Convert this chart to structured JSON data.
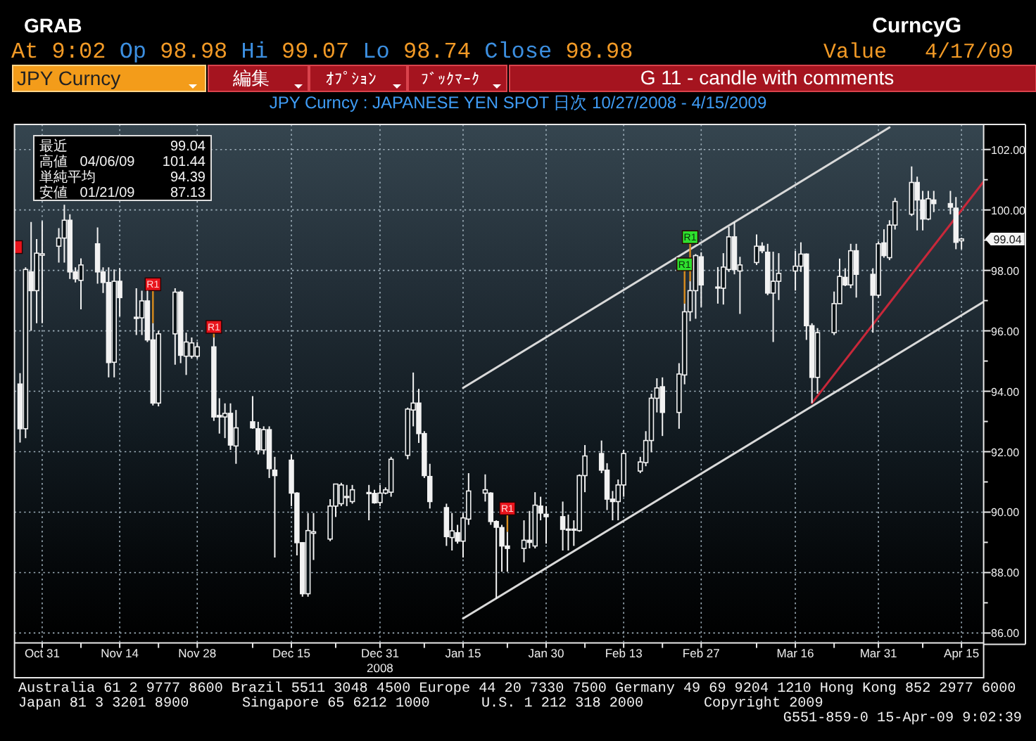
{
  "chart_data": {
    "type": "candlestick",
    "title": "JPY Curncy : JAPANESE YEN SPOT 日次 10/27/2008 - 4/15/2009",
    "annotations": [
      "GRAB",
      "CurncyG",
      "At 9:02 Op 98.98 Hi 99.07 Lo 98.74 Close 98.98",
      "Value 4/17/09",
      "JPY Curncy",
      "編集",
      "ｵﾌﾟｼｮﾝ",
      "ﾌﾞｯｸﾏｰｸ",
      "G 11 - candle with comments",
      "最近 99.04",
      "高値 04/06/09 101.44",
      "単純平均 94.39",
      "安値 01/21/09 87.13",
      "Australia 61 2 9777 8600 Brazil 5511 3048 4500 Europe 44 20 7330 7500 Germany 49 69 9204 1210 Hong Kong 852 2977 6000",
      "Japan 81 3 3201 8900",
      "Singapore 65 6212 1000",
      "U.S. 1 212 318 2000",
      "Copyright 2009",
      "G551-859-0 15-Apr-09 9:02:39",
      "99.04"
    ],
    "x": [
      "2008-10-27",
      "2008-10-28",
      "2008-10-29",
      "2008-10-30",
      "2008-10-31",
      "2008-11-03",
      "2008-11-04",
      "2008-11-05",
      "2008-11-06",
      "2008-11-07",
      "2008-11-10",
      "2008-11-11",
      "2008-11-12",
      "2008-11-13",
      "2008-11-14",
      "2008-11-17",
      "2008-11-18",
      "2008-11-19",
      "2008-11-20",
      "2008-11-21",
      "2008-11-24",
      "2008-11-25",
      "2008-11-26",
      "2008-11-27",
      "2008-11-28",
      "2008-12-01",
      "2008-12-02",
      "2008-12-03",
      "2008-12-04",
      "2008-12-05",
      "2008-12-08",
      "2008-12-09",
      "2008-12-10",
      "2008-12-11",
      "2008-12-12",
      "2008-12-15",
      "2008-12-16",
      "2008-12-17",
      "2008-12-18",
      "2008-12-19",
      "2008-12-22",
      "2008-12-23",
      "2008-12-24",
      "2008-12-25",
      "2008-12-26",
      "2008-12-29",
      "2008-12-30",
      "2008-12-31",
      "2009-01-01",
      "2009-01-02",
      "2009-01-05",
      "2009-01-06",
      "2009-01-07",
      "2009-01-08",
      "2009-01-09",
      "2009-01-12",
      "2009-01-13",
      "2009-01-14",
      "2009-01-15",
      "2009-01-16",
      "2009-01-19",
      "2009-01-20",
      "2009-01-21",
      "2009-01-22",
      "2009-01-23",
      "2009-01-26",
      "2009-01-27",
      "2009-01-28",
      "2009-01-29",
      "2009-01-30",
      "2009-02-02",
      "2009-02-03",
      "2009-02-04",
      "2009-02-05",
      "2009-02-06",
      "2009-02-09",
      "2009-02-10",
      "2009-02-11",
      "2009-02-12",
      "2009-02-13",
      "2009-02-16",
      "2009-02-17",
      "2009-02-18",
      "2009-02-19",
      "2009-02-20",
      "2009-02-23",
      "2009-02-24",
      "2009-02-25",
      "2009-02-26",
      "2009-02-27",
      "2009-03-02",
      "2009-03-03",
      "2009-03-04",
      "2009-03-05",
      "2009-03-06",
      "2009-03-09",
      "2009-03-10",
      "2009-03-11",
      "2009-03-12",
      "2009-03-13",
      "2009-03-16",
      "2009-03-17",
      "2009-03-18",
      "2009-03-19",
      "2009-03-20",
      "2009-03-23",
      "2009-03-24",
      "2009-03-25",
      "2009-03-26",
      "2009-03-27",
      "2009-03-30",
      "2009-03-31",
      "2009-04-01",
      "2009-04-02",
      "2009-04-03",
      "2009-04-06",
      "2009-04-07",
      "2009-04-08",
      "2009-04-09",
      "2009-04-10",
      "2009-04-13",
      "2009-04-14",
      "2009-04-15"
    ],
    "ohlc": [
      [
        94.24,
        94.6,
        92.3,
        92.76
      ],
      [
        92.76,
        98.1,
        92.45,
        98.03
      ],
      [
        97.95,
        99.6,
        96.0,
        97.33
      ],
      [
        97.33,
        99.04,
        96.25,
        98.57
      ],
      [
        98.5,
        99.63,
        96.25,
        98.55
      ],
      [
        98.8,
        99.4,
        98.26,
        99.07
      ],
      [
        99.07,
        100.17,
        98.26,
        99.66
      ],
      [
        99.66,
        99.86,
        97.72,
        97.95
      ],
      [
        97.95,
        98.1,
        97.6,
        97.72
      ],
      [
        97.67,
        98.4,
        96.71,
        98.18
      ],
      [
        98.88,
        99.42,
        97.56,
        97.95
      ],
      [
        97.95,
        98.1,
        97.25,
        97.6
      ],
      [
        97.6,
        98.1,
        94.46,
        94.95
      ],
      [
        94.96,
        98.03,
        94.46,
        97.64
      ],
      [
        97.64,
        98.07,
        96.48,
        97.1
      ],
      [
        96.45,
        97.41,
        95.86,
        96.41
      ],
      [
        96.43,
        97.33,
        95.86,
        96.99
      ],
      [
        96.99,
        97.33,
        95.63,
        95.7
      ],
      [
        95.7,
        96.25,
        93.53,
        93.61
      ],
      [
        93.61,
        96.0,
        93.5,
        95.9
      ],
      [
        95.9,
        97.41,
        94.88,
        97.28
      ],
      [
        97.28,
        97.33,
        94.93,
        95.19
      ],
      [
        95.16,
        95.94,
        94.54,
        95.63
      ],
      [
        95.16,
        95.78,
        95.08,
        95.6
      ],
      [
        95.16,
        95.63,
        95.08,
        95.47
      ],
      [
        95.47,
        95.78,
        93.02,
        93.15
      ],
      [
        93.2,
        93.77,
        92.6,
        93.15
      ],
      [
        93.15,
        93.6,
        92.45,
        93.27
      ],
      [
        93.27,
        93.6,
        92.06,
        92.22
      ],
      [
        92.19,
        93.38,
        91.6,
        92.79
      ],
      [
        92.99,
        93.84,
        92.76,
        92.79
      ],
      [
        92.76,
        92.99,
        91.91,
        92.06
      ],
      [
        92.06,
        92.84,
        91.91,
        92.73
      ],
      [
        92.73,
        92.84,
        91.13,
        91.44
      ],
      [
        91.39,
        91.83,
        88.5,
        91.21
      ],
      [
        91.72,
        91.91,
        90.2,
        90.63
      ],
      [
        90.63,
        90.66,
        88.57,
        88.99
      ],
      [
        88.99,
        89.0,
        87.2,
        87.3
      ],
      [
        87.3,
        89.97,
        87.2,
        89.39
      ],
      [
        89.3,
        89.97,
        88.42,
        89.35
      ],
      [
        89.11,
        90.43,
        89.04,
        90.2
      ],
      [
        90.2,
        90.94,
        89.84,
        90.93
      ],
      [
        90.28,
        90.97,
        90.2,
        90.9
      ],
      [
        90.52,
        90.9,
        90.2,
        90.5
      ],
      [
        90.35,
        90.9,
        90.28,
        90.74
      ],
      [
        90.65,
        90.9,
        89.73,
        90.63
      ],
      [
        90.62,
        90.74,
        90.28,
        90.31
      ],
      [
        90.32,
        90.9,
        90.2,
        90.63
      ],
      [
        90.63,
        90.82,
        90.59,
        90.74
      ],
      [
        90.66,
        91.83,
        90.51,
        91.75
      ],
      [
        91.88,
        93.46,
        91.75,
        93.41
      ],
      [
        93.38,
        94.62,
        92.84,
        93.61
      ],
      [
        93.61,
        94.08,
        92.29,
        92.6
      ],
      [
        92.6,
        92.68,
        91.13,
        91.21
      ],
      [
        91.18,
        91.6,
        90.12,
        90.35
      ],
      [
        90.15,
        90.28,
        88.88,
        89.19
      ],
      [
        89.16,
        89.97,
        88.73,
        89.38
      ],
      [
        89.32,
        89.58,
        88.96,
        89.04
      ],
      [
        89.04,
        89.97,
        88.5,
        89.81
      ],
      [
        89.77,
        91.29,
        89.58,
        90.7
      ],
      [
        90.63,
        91.25,
        90.35,
        90.74
      ],
      [
        90.63,
        90.66,
        89.58,
        89.69
      ],
      [
        89.69,
        89.73,
        87.13,
        89.5
      ],
      [
        89.49,
        89.58,
        88.03,
        88.88
      ],
      [
        88.88,
        89.35,
        88.03,
        88.8
      ],
      [
        88.8,
        89.73,
        88.34,
        89.07
      ],
      [
        89.07,
        90.04,
        88.8,
        89.0
      ],
      [
        88.88,
        90.66,
        88.8,
        90.23
      ],
      [
        90.2,
        90.51,
        89.73,
        89.97
      ],
      [
        89.93,
        90.2,
        88.96,
        89.85
      ],
      [
        89.85,
        90.35,
        88.73,
        89.43
      ],
      [
        89.43,
        89.92,
        88.73,
        89.44
      ],
      [
        89.42,
        89.73,
        88.88,
        89.44
      ],
      [
        89.39,
        91.25,
        89.35,
        91.21
      ],
      [
        91.21,
        92.22,
        90.66,
        91.86
      ],
      [
        91.94,
        92.37,
        91.29,
        91.39
      ],
      [
        91.39,
        91.62,
        90.07,
        90.43
      ],
      [
        90.43,
        90.7,
        89.73,
        90.35
      ],
      [
        90.35,
        91.08,
        89.73,
        90.9
      ],
      [
        90.9,
        92.06,
        90.51,
        91.94
      ],
      [
        91.36,
        91.83,
        91.29,
        91.66
      ],
      [
        91.64,
        92.68,
        91.52,
        92.37
      ],
      [
        92.37,
        93.92,
        91.98,
        93.77
      ],
      [
        93.77,
        94.43,
        93.3,
        94.11
      ],
      [
        94.15,
        94.46,
        92.52,
        93.3
      ],
      [
        93.3,
        94.93,
        92.76,
        94.57
      ],
      [
        94.54,
        96.9,
        94.23,
        96.63
      ],
      [
        96.63,
        97.64,
        96.32,
        97.33
      ],
      [
        97.33,
        98.54,
        96.4,
        98.49
      ],
      [
        98.45,
        98.6,
        96.79,
        97.52
      ],
      [
        97.45,
        98.11,
        96.9,
        97.44
      ],
      [
        97.41,
        98.57,
        96.87,
        98.11
      ],
      [
        98.03,
        99.44,
        97.95,
        99.11
      ],
      [
        99.11,
        99.6,
        97.87,
        98.03
      ],
      [
        97.98,
        98.45,
        96.56,
        98.18
      ],
      [
        98.26,
        99.19,
        98.18,
        98.8
      ],
      [
        98.8,
        98.93,
        98.57,
        98.65
      ],
      [
        98.6,
        98.88,
        97.18,
        97.25
      ],
      [
        97.25,
        98.62,
        95.63,
        97.64
      ],
      [
        97.64,
        98.57,
        97.02,
        97.9
      ],
      [
        97.98,
        98.65,
        97.33,
        98.14
      ],
      [
        98.14,
        98.93,
        97.95,
        98.54
      ],
      [
        98.54,
        98.56,
        95.7,
        96.17
      ],
      [
        96.17,
        96.25,
        93.61,
        94.46
      ],
      [
        94.46,
        96.09,
        93.92,
        95.94
      ],
      [
        95.94,
        97.3,
        95.86,
        96.9
      ],
      [
        96.9,
        98.39,
        96.9,
        97.8
      ],
      [
        97.77,
        98.07,
        97.48,
        97.52
      ],
      [
        97.52,
        98.88,
        97.41,
        98.65
      ],
      [
        98.65,
        98.88,
        97.1,
        97.87
      ],
      [
        97.87,
        98.07,
        95.94,
        97.18
      ],
      [
        97.18,
        98.96,
        97.1,
        98.88
      ],
      [
        98.91,
        99.36,
        98.42,
        98.49
      ],
      [
        98.42,
        99.66,
        98.34,
        99.5
      ],
      [
        99.5,
        100.4,
        99.35,
        100.28
      ],
      [
        99.86,
        101.44,
        99.8,
        100.91
      ],
      [
        100.91,
        101.1,
        99.32,
        100.33
      ],
      [
        100.33,
        100.63,
        99.32,
        99.7
      ],
      [
        99.7,
        100.63,
        99.66,
        100.37
      ],
      [
        100.33,
        100.63,
        99.93,
        100.21
      ],
      [
        100.21,
        100.63,
        99.86,
        100.09
      ],
      [
        100.06,
        100.43,
        98.7,
        98.93
      ],
      [
        98.98,
        99.08,
        98.7,
        99.04
      ]
    ],
    "series": [
      {
        "type": "line",
        "color": "#d9d9d9",
        "x": [
          "2009-01-15",
          "2009-04-02"
        ],
        "values": [
          94.11,
          102.73
        ]
      },
      {
        "type": "line",
        "color": "#d9d9d9",
        "x": [
          "2009-01-15",
          "2009-04-19"
        ],
        "values": [
          86.48,
          96.96
        ]
      },
      {
        "type": "line",
        "color": "#c8283a",
        "x": [
          "2009-03-19",
          "2009-04-19"
        ],
        "values": [
          93.61,
          100.94
        ]
      },
      {
        "type": "scatter",
        "marker": "square",
        "color": "#e8141c",
        "x": [
          "2008-10-26",
          "2008-11-20",
          "2008-12-01",
          "2009-01-23"
        ],
        "values": [
          98.77,
          97.54,
          96.13,
          90.12
        ],
        "value_labels": [
          null,
          "R1",
          "R1",
          "R1"
        ]
      },
      {
        "type": "scatter",
        "marker": "square",
        "color": "#2ee02e",
        "x": [
          "2009-02-24",
          "2009-02-25"
        ],
        "values": [
          98.2,
          99.1
        ],
        "value_labels": [
          "R1",
          "R1"
        ]
      }
    ],
    "xlim": [
      "2008-10-26",
      "2009-04-19"
    ],
    "xticks": [
      {
        "value": "2008-10-31",
        "label": "Oct 31"
      },
      {
        "value": "2008-11-07",
        "label": null
      },
      {
        "value": "2008-11-14",
        "label": "Nov 14"
      },
      {
        "value": "2008-11-21",
        "label": null
      },
      {
        "value": "2008-11-28",
        "label": "Nov 28"
      },
      {
        "value": "2008-12-08",
        "label": null
      },
      {
        "value": "2008-12-15",
        "label": "Dec 15"
      },
      {
        "value": "2008-12-23",
        "label": null
      },
      {
        "value": "2008-12-31",
        "label": "Dec 31\n2008"
      },
      {
        "value": "2009-01-08",
        "label": null
      },
      {
        "value": "2009-01-15",
        "label": "Jan 15"
      },
      {
        "value": "2009-01-23",
        "label": null
      },
      {
        "value": "2009-01-30",
        "label": "Jan 30"
      },
      {
        "value": "2009-02-06",
        "label": null
      },
      {
        "value": "2009-02-13",
        "label": "Feb 13"
      },
      {
        "value": "2009-02-20",
        "label": null
      },
      {
        "value": "2009-02-27",
        "label": "Feb 27"
      },
      {
        "value": "2009-03-09",
        "label": null
      },
      {
        "value": "2009-03-16",
        "label": "Mar 16"
      },
      {
        "value": "2009-03-23",
        "label": null
      },
      {
        "value": "2009-03-31",
        "label": "Mar 31"
      },
      {
        "value": "2009-04-08",
        "label": null
      },
      {
        "value": "2009-04-15",
        "label": "Apr 15"
      }
    ],
    "ylim": [
      85.67,
      102.83
    ],
    "yticks": [
      {
        "value": 86,
        "label": "86.00"
      },
      {
        "value": 87,
        "label": null
      },
      {
        "value": 88,
        "label": "88.00"
      },
      {
        "value": 89,
        "label": null
      },
      {
        "value": 90,
        "label": "90.00"
      },
      {
        "value": 91,
        "label": null
      },
      {
        "value": 92,
        "label": "92.00"
      },
      {
        "value": 93,
        "label": null
      },
      {
        "value": 94,
        "label": "94.00"
      },
      {
        "value": 95,
        "label": null
      },
      {
        "value": 96,
        "label": "96.00"
      },
      {
        "value": 97,
        "label": null
      },
      {
        "value": 98,
        "label": "98.00"
      },
      {
        "value": 99,
        "label": null
      },
      {
        "value": 100,
        "label": "100.00"
      },
      {
        "value": 101,
        "label": null
      },
      {
        "value": 102,
        "label": "102.00"
      }
    ],
    "grid": true
  }
}
